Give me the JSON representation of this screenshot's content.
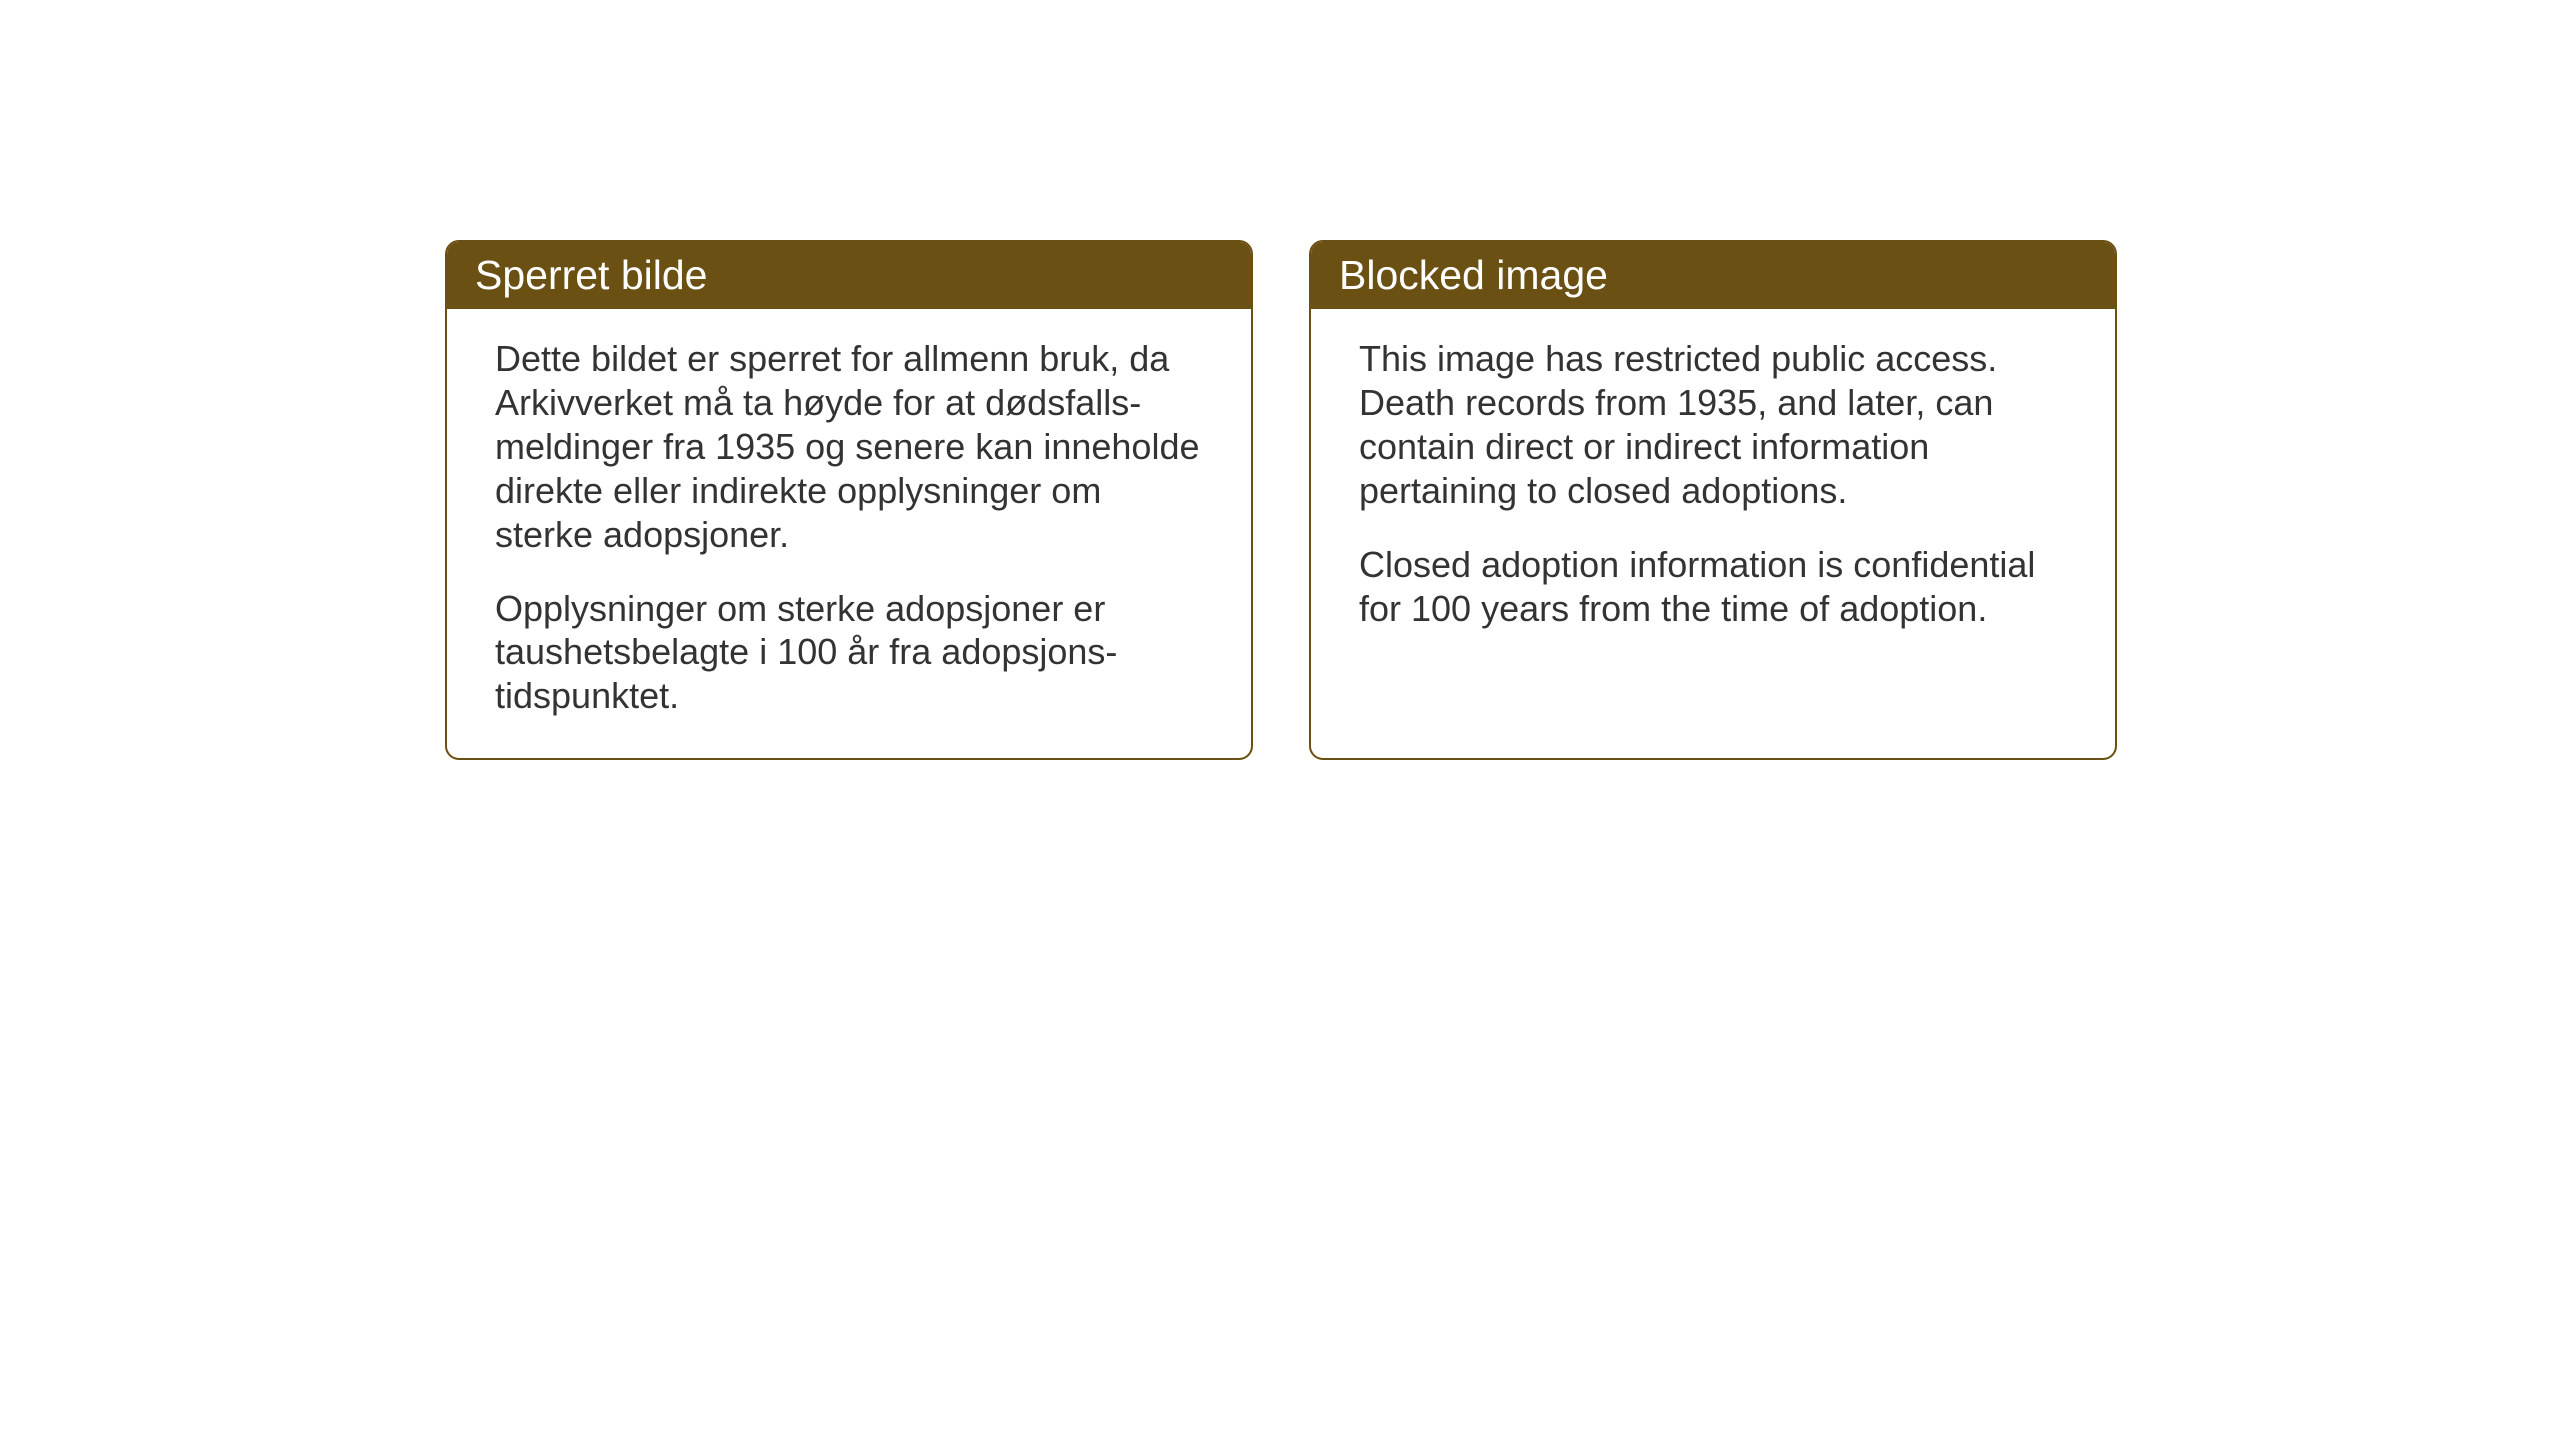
{
  "layout": {
    "background_color": "#ffffff",
    "card_border_color": "#6b5013",
    "card_header_bg": "#6b5013",
    "card_header_text_color": "#ffffff",
    "card_body_text_color": "#333333",
    "border_radius": 14,
    "header_fontsize": 41,
    "body_fontsize": 36
  },
  "cards": {
    "norwegian": {
      "title": "Sperret bilde",
      "paragraph1": "Dette bildet er sperret for allmenn bruk, da Arkivverket må ta høyde for at dødsfalls-meldinger fra 1935 og senere kan inneholde direkte eller indirekte opplysninger om sterke adopsjoner.",
      "paragraph2": "Opplysninger om sterke adopsjoner er taushetsbelagte i 100 år fra adopsjons-tidspunktet."
    },
    "english": {
      "title": "Blocked image",
      "paragraph1": "This image has restricted public access. Death records from 1935, and later, can contain direct or indirect information pertaining to closed adoptions.",
      "paragraph2": "Closed adoption information is confidential for 100 years from the time of adoption."
    }
  }
}
